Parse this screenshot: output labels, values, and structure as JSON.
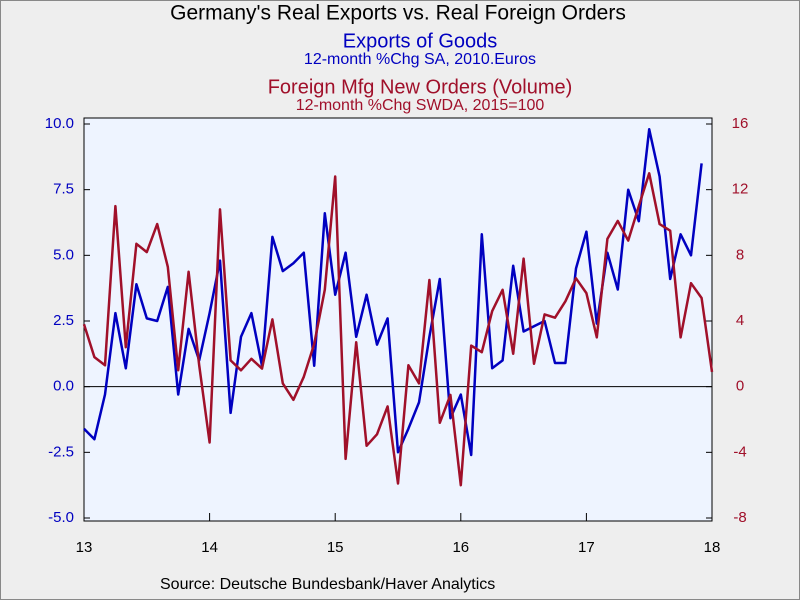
{
  "chart_data": {
    "type": "line",
    "title": "Germany's Real Exports vs. Real Foreign Orders",
    "subtitles": [
      {
        "text": "Exports of Goods",
        "color": "#0000c0"
      },
      {
        "text": "12-month %Chg      SA, 2010.Euros",
        "color": "#0000c0"
      },
      {
        "text": "Foreign Mfg New Orders (Volume)",
        "color": "#a0102a"
      },
      {
        "text": "12-month %Chg    SWDA, 2015=100",
        "color": "#a0102a"
      }
    ],
    "source": "Source:  Deutsche Bundesbank/Haver Analytics",
    "x": [
      2013,
      2013.083,
      2013.167,
      2013.25,
      2013.333,
      2013.417,
      2013.5,
      2013.583,
      2013.667,
      2013.75,
      2013.833,
      2013.917,
      2014,
      2014.083,
      2014.167,
      2014.25,
      2014.333,
      2014.417,
      2014.5,
      2014.583,
      2014.667,
      2014.75,
      2014.833,
      2014.917,
      2015,
      2015.083,
      2015.167,
      2015.25,
      2015.333,
      2015.417,
      2015.5,
      2015.583,
      2015.667,
      2015.75,
      2015.833,
      2015.917,
      2016,
      2016.083,
      2016.167,
      2016.25,
      2016.333,
      2016.417,
      2016.5,
      2016.583,
      2016.667,
      2016.75,
      2016.833,
      2016.917,
      2017,
      2017.083,
      2017.167,
      2017.25,
      2017.333,
      2017.417,
      2017.5,
      2017.583,
      2017.667,
      2017.75,
      2017.833,
      2017.917,
      2018
    ],
    "xlim": [
      2013,
      2018
    ],
    "xticks": [
      {
        "value": 2013,
        "label": "13"
      },
      {
        "value": 2014,
        "label": "14"
      },
      {
        "value": 2015,
        "label": "15"
      },
      {
        "value": 2016,
        "label": "16"
      },
      {
        "value": 2017,
        "label": "17"
      },
      {
        "value": 2018,
        "label": "18"
      }
    ],
    "ylim": [
      -5,
      10
    ],
    "yticks": [
      {
        "value": 10,
        "label": "10.0"
      },
      7.5,
      {
        "value": 5,
        "label": "5.0"
      },
      2.5,
      {
        "value": 0,
        "label": "0.0"
      },
      -2.5,
      {
        "value": -5,
        "label": "-5.0"
      }
    ],
    "y2lim": [
      -8,
      16
    ],
    "y2ticks": [
      16,
      12,
      8,
      4,
      0,
      -4,
      -8
    ],
    "series": [
      {
        "name": "Exports of Goods",
        "color": "#0000c0",
        "axis": "y",
        "values": [
          -1.6,
          -2.0,
          -0.3,
          2.8,
          0.7,
          3.9,
          2.6,
          2.5,
          3.8,
          -0.3,
          2.2,
          1.0,
          2.8,
          4.8,
          -1.0,
          1.9,
          2.8,
          0.8,
          5.7,
          4.4,
          4.7,
          5.1,
          0.8,
          6.6,
          3.5,
          5.1,
          1.9,
          3.5,
          1.6,
          2.6,
          -2.5,
          -1.6,
          -0.6,
          1.9,
          4.1,
          -1.2,
          -0.3,
          -2.6,
          5.8,
          0.7,
          1.0,
          4.6,
          2.1,
          2.3,
          2.5,
          0.9,
          0.9,
          4.5,
          5.9,
          2.4,
          5.1,
          3.7,
          7.5,
          6.3,
          9.8,
          8.0,
          4.1,
          5.8,
          5.0,
          8.5,
          null
        ]
      },
      {
        "name": "Foreign Mfg New Orders (Volume)",
        "color": "#a0102a",
        "axis": "y2",
        "values": [
          3.8,
          1.8,
          1.3,
          11.0,
          2.4,
          8.7,
          8.2,
          9.9,
          7.3,
          1.0,
          7.0,
          1.3,
          -3.4,
          10.8,
          1.6,
          1.0,
          1.7,
          1.1,
          4.1,
          0.2,
          -0.8,
          0.6,
          2.6,
          5.9,
          12.8,
          -4.4,
          2.7,
          -3.6,
          -2.9,
          -1.2,
          -5.9,
          1.3,
          0.2,
          6.5,
          -2.2,
          -0.5,
          -6.0,
          2.5,
          2.1,
          4.6,
          5.9,
          2.0,
          7.8,
          1.4,
          4.4,
          4.2,
          5.2,
          6.6,
          5.7,
          3.0,
          9.0,
          10.1,
          8.9,
          11.0,
          13.0,
          9.9,
          9.5,
          3.0,
          6.3,
          5.4,
          0.9
        ]
      }
    ]
  }
}
